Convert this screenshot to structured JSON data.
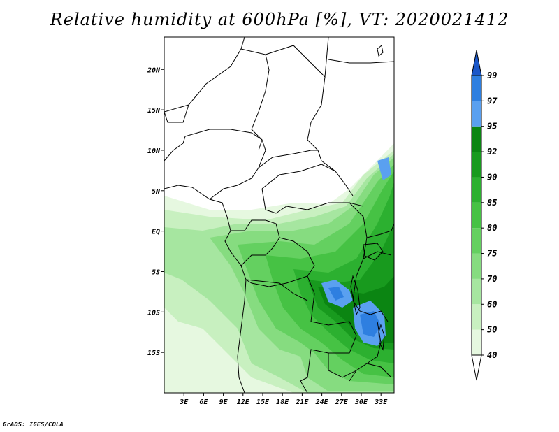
{
  "title": "Relative humidity at 600hPa [%], VT: 2020021412",
  "credit": "GrADS: IGES/COLA",
  "map": {
    "lon_range": [
      0,
      35
    ],
    "lat_range": [
      -20,
      24
    ],
    "lat_ticks": [
      {
        "value": 20,
        "label": "20N"
      },
      {
        "value": 15,
        "label": "15N"
      },
      {
        "value": 10,
        "label": "10N"
      },
      {
        "value": 5,
        "label": "5N"
      },
      {
        "value": 0,
        "label": "EQ"
      },
      {
        "value": -5,
        "label": "5S"
      },
      {
        "value": -10,
        "label": "10S"
      },
      {
        "value": -15,
        "label": "15S"
      }
    ],
    "lon_ticks": [
      {
        "value": 3,
        "label": "3E"
      },
      {
        "value": 6,
        "label": "6E"
      },
      {
        "value": 9,
        "label": "9E"
      },
      {
        "value": 12,
        "label": "12E"
      },
      {
        "value": 15,
        "label": "15E"
      },
      {
        "value": 18,
        "label": "18E"
      },
      {
        "value": 21,
        "label": "21E"
      },
      {
        "value": 24,
        "label": "24E"
      },
      {
        "value": 27,
        "label": "27E"
      },
      {
        "value": 30,
        "label": "30E"
      },
      {
        "value": 33,
        "label": "33E"
      }
    ]
  },
  "colorbar": {
    "levels": [
      "40",
      "50",
      "60",
      "70",
      "75",
      "80",
      "85",
      "90",
      "92",
      "95",
      "97",
      "99"
    ],
    "colors": [
      "#ffffff",
      "#e6f8e0",
      "#c8f0c0",
      "#a6e6a0",
      "#86dc80",
      "#64d060",
      "#46c244",
      "#2cb030",
      "#189a1e",
      "#0b8512",
      "#5aa0f0",
      "#2e7fe0",
      "#1b57c8"
    ]
  }
}
